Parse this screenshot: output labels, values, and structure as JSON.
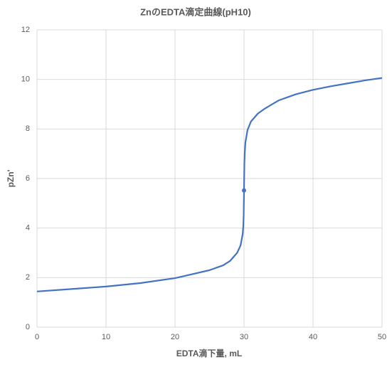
{
  "chart_data": {
    "type": "line",
    "title": "ZnのEDTA滴定曲線(pH10)",
    "x_label": "EDTA滴下量, mL",
    "y_label": "pZn'",
    "x": [
      0,
      5,
      10,
      15,
      20,
      25,
      27,
      28,
      29,
      29.5,
      29.8,
      29.9,
      29.95,
      30,
      30.05,
      30.1,
      30.2,
      30.5,
      31,
      32,
      33,
      35,
      37.5,
      40,
      42.5,
      45,
      47.5,
      50
    ],
    "series": [
      {
        "color": "#4472c4",
        "values": [
          1.44,
          1.54,
          1.64,
          1.78,
          1.98,
          2.3,
          2.5,
          2.68,
          3.0,
          3.3,
          3.75,
          4.1,
          4.5,
          5.52,
          6.6,
          7.0,
          7.45,
          7.95,
          8.3,
          8.62,
          8.82,
          9.15,
          9.4,
          9.58,
          9.72,
          9.84,
          9.96,
          10.06
        ]
      }
    ],
    "points": [
      {
        "x": 30,
        "y": 5.52,
        "color": "#4472c4"
      }
    ],
    "xlim": [
      0,
      50
    ],
    "xticks": [
      0,
      10,
      20,
      30,
      40,
      50
    ],
    "ylim": [
      0,
      12
    ],
    "yticks": [
      0,
      2,
      4,
      6,
      8,
      10,
      12
    ],
    "grid": true
  }
}
